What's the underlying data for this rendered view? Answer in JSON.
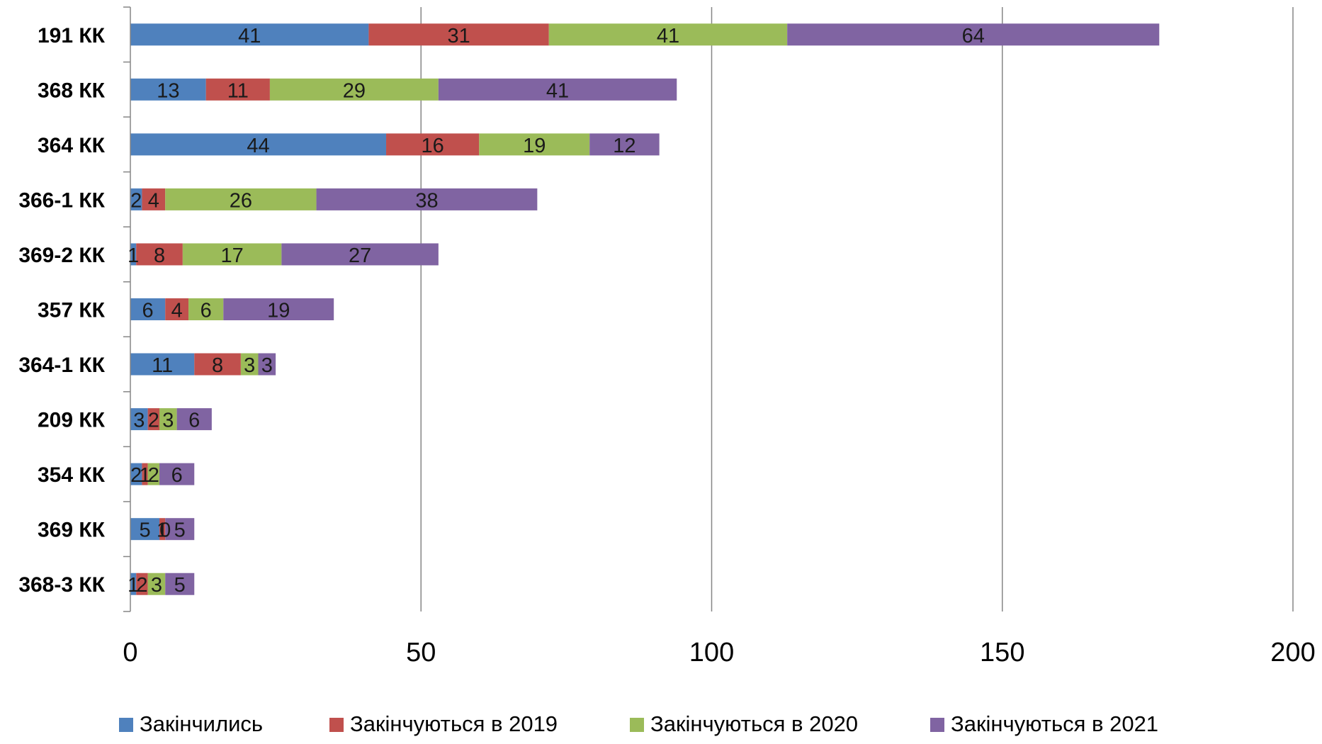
{
  "chart_data": {
    "type": "bar",
    "orientation": "horizontal",
    "stacked": true,
    "title": "",
    "xlabel": "",
    "ylabel": "",
    "xlim": [
      0,
      200
    ],
    "x_ticks": [
      0,
      50,
      100,
      150,
      200
    ],
    "x_tick_labels": [
      "0",
      "50",
      "100",
      "150",
      "200"
    ],
    "grid": "vertical major gridlines",
    "legend_position": "bottom",
    "categories": [
      "191 КК",
      "368 КК",
      "364 КК",
      "366-1 КК",
      "369-2 КК",
      "357 КК",
      "364-1 КК",
      "209 КК",
      "354 КК",
      "369 КК",
      "368-3 КК"
    ],
    "series": [
      {
        "name": "Закінчились",
        "color": "#4F81BD",
        "values": [
          41,
          13,
          44,
          2,
          1,
          6,
          11,
          3,
          2,
          5,
          1
        ]
      },
      {
        "name": "Закінчуються в 2019",
        "color": "#C0504D",
        "values": [
          31,
          11,
          16,
          4,
          8,
          4,
          8,
          2,
          1,
          1,
          2
        ]
      },
      {
        "name": "Закінчуються в 2020",
        "color": "#9BBB59",
        "values": [
          41,
          29,
          19,
          26,
          17,
          6,
          3,
          3,
          2,
          0,
          3
        ]
      },
      {
        "name": "Закінчуються в 2021",
        "color": "#8064A2",
        "values": [
          64,
          41,
          12,
          38,
          27,
          19,
          3,
          6,
          6,
          5,
          5
        ]
      }
    ]
  }
}
